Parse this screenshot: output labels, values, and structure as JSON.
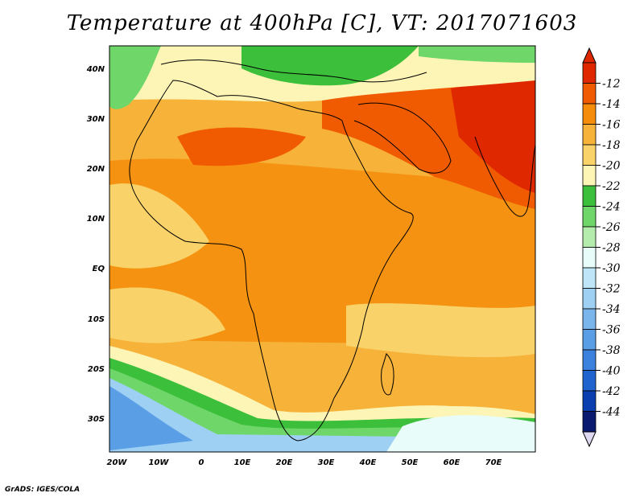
{
  "title": "Temperature at 400hPa [C], VT: 2017071603",
  "credit": "GrADS: IGES/COLA",
  "map": {
    "lon_ticks": [
      "20W",
      "10W",
      "0",
      "10E",
      "20E",
      "30E",
      "40E",
      "50E",
      "60E",
      "70E"
    ],
    "lat_ticks": [
      "40N",
      "30N",
      "20N",
      "10N",
      "EQ",
      "10S",
      "20S",
      "30S"
    ]
  },
  "colorbar": {
    "levels": [
      "-12",
      "-14",
      "-16",
      "-18",
      "-20",
      "-22",
      "-24",
      "-26",
      "-28",
      "-30",
      "-32",
      "-34",
      "-36",
      "-38",
      "-40",
      "-42",
      "-44"
    ],
    "colors": [
      "#e02800",
      "#f05a00",
      "#f58c0a",
      "#f7b23a",
      "#f9d36a",
      "#fdf5b5",
      "#3cbf3a",
      "#6fd66a",
      "#b3ecac",
      "#e8fcfa",
      "#bfe6f8",
      "#9dd0f3",
      "#7ab6ec",
      "#5a9ee6",
      "#3a82dd",
      "#1f63cf",
      "#0b3fb0",
      "#0a1a6e"
    ],
    "top_arrow_color": "#e02800",
    "bottom_arrow_color": "#ded8f0"
  },
  "palette": {
    "sea_cold": "#9dd0f3",
    "warm_base": "#f7b23a"
  }
}
